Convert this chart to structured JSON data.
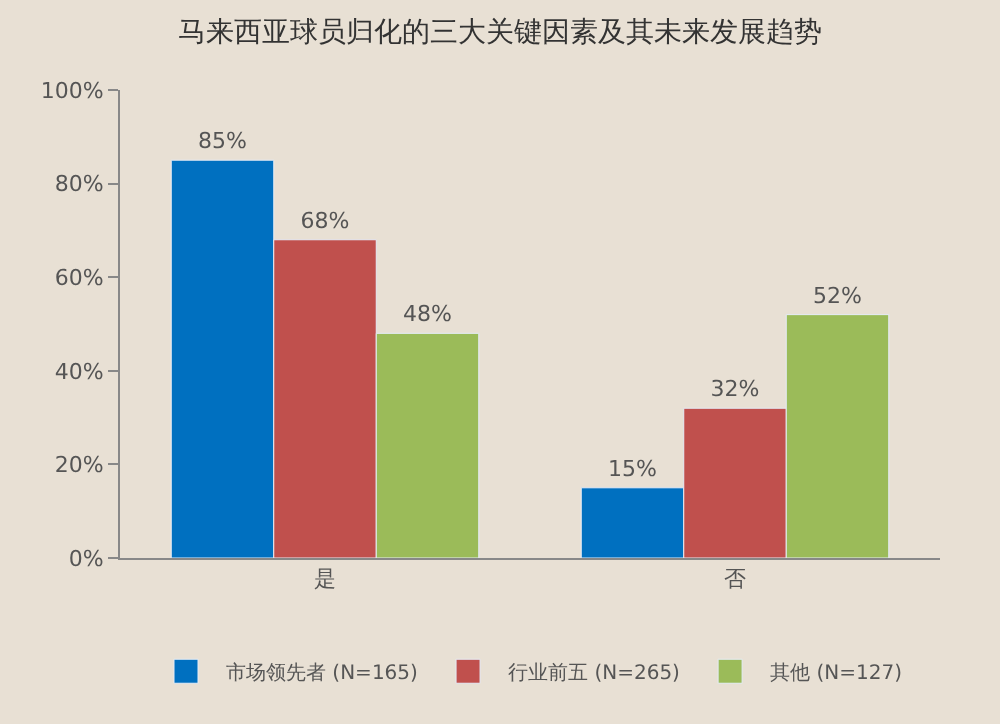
{
  "chart_data": {
    "type": "bar",
    "title": "马来西亚球员归化的三大关键因素及其未来发展趋势",
    "categories": [
      "是",
      "否"
    ],
    "series": [
      {
        "name": "市场领先者 (N=165)",
        "color": "#0070c0",
        "values": [
          85,
          15
        ],
        "value_labels": [
          "85%",
          "15%"
        ]
      },
      {
        "name": "行业前五 (N=265)",
        "color": "#c0504d",
        "values": [
          68,
          32
        ],
        "value_labels": [
          "68%",
          "32%"
        ]
      },
      {
        "name": "其他 (N=127)",
        "color": "#9bbb59",
        "values": [
          48,
          52
        ],
        "value_labels": [
          "48%",
          "52%"
        ]
      }
    ],
    "ylim": [
      0,
      100
    ],
    "yticks": [
      {
        "value": 0,
        "label": "0%"
      },
      {
        "value": 20,
        "label": "20%"
      },
      {
        "value": 40,
        "label": "40%"
      },
      {
        "value": 60,
        "label": "60%"
      },
      {
        "value": 80,
        "label": "80%"
      },
      {
        "value": 100,
        "label": "100%"
      }
    ],
    "grid": false,
    "legend": "bottom"
  }
}
